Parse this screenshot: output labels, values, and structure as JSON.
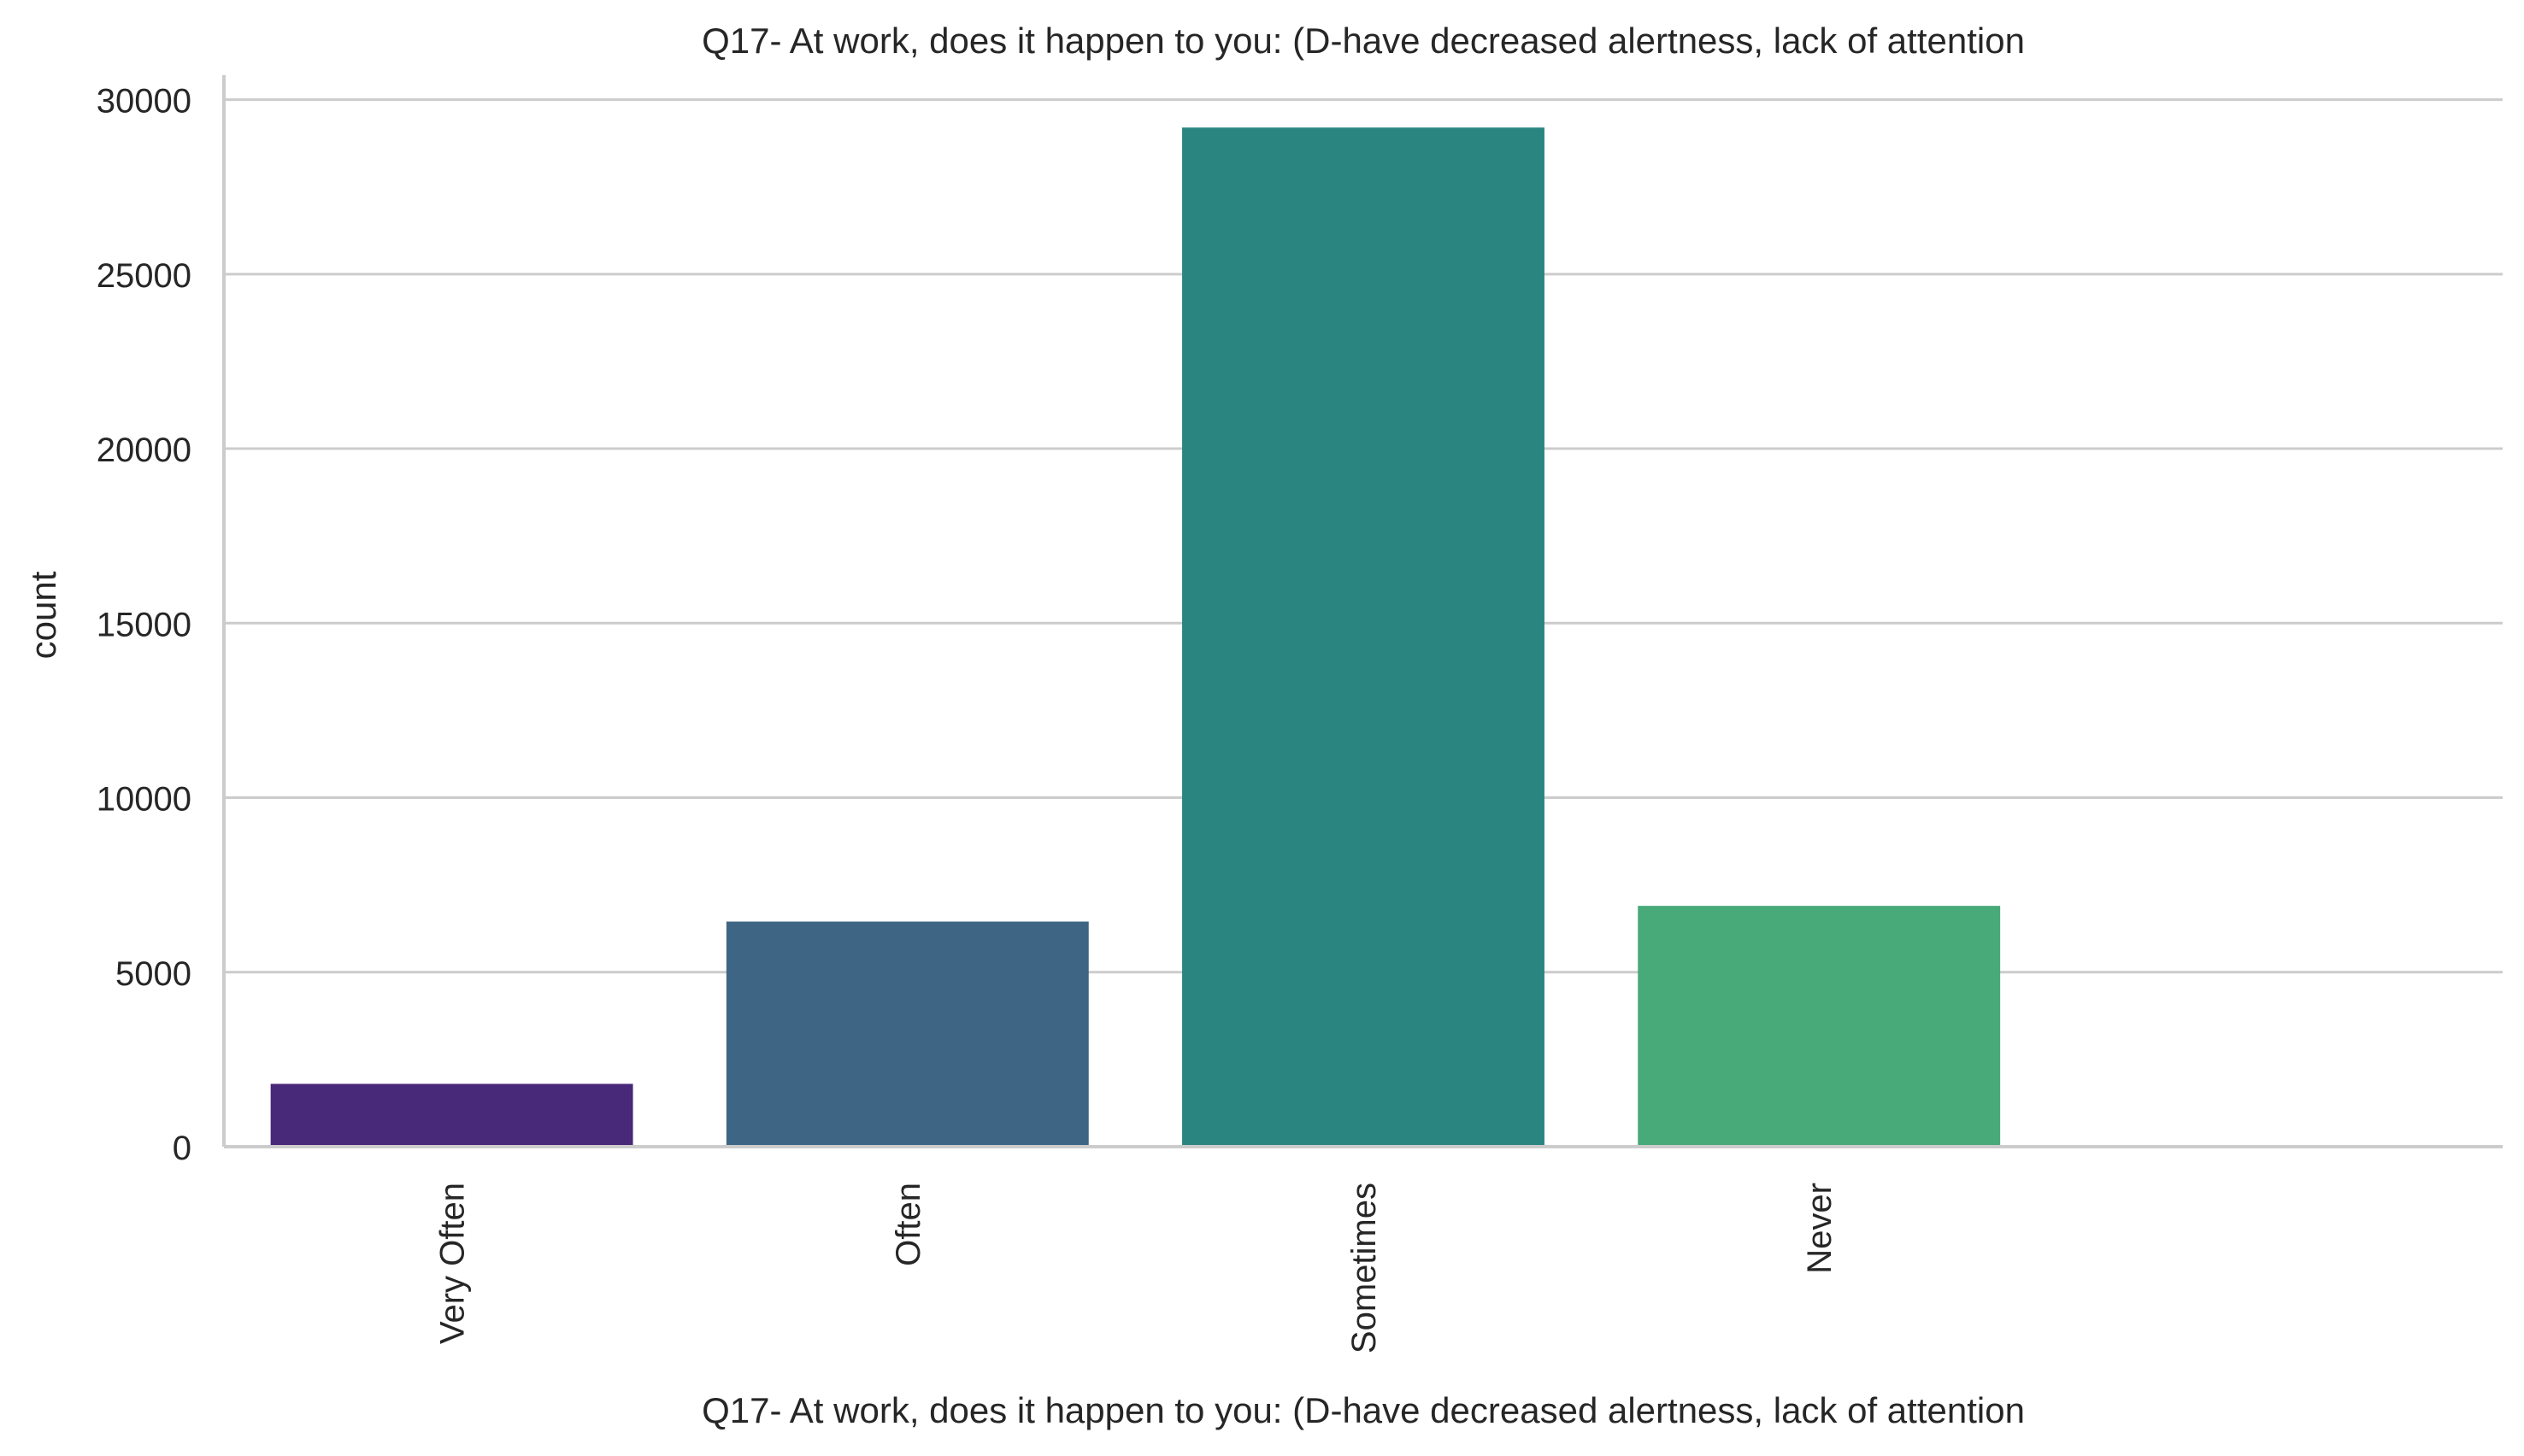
{
  "chart_data": {
    "type": "bar",
    "title": "Q17- At work, does it happen to you: (D-have decreased alertness, lack of attention",
    "xlabel": "Q17- At work, does it happen to you: (D-have decreased alertness, lack of attention",
    "ylabel": "count",
    "categories": [
      "Very Often",
      "Often",
      "Sometimes",
      "Never",
      ""
    ],
    "values": [
      1800,
      6450,
      29200,
      6900,
      0
    ],
    "colors": [
      "#482878",
      "#3e6583",
      "#2a8580",
      "#48a979",
      "#7bd250"
    ],
    "ylim": [
      0,
      30700
    ],
    "yticks": [
      0,
      5000,
      10000,
      15000,
      20000,
      25000,
      30000
    ],
    "ytick_labels": [
      "0",
      "5000",
      "10000",
      "15000",
      "20000",
      "25000",
      "30000"
    ],
    "grid": "horizontal",
    "legend": "none"
  }
}
